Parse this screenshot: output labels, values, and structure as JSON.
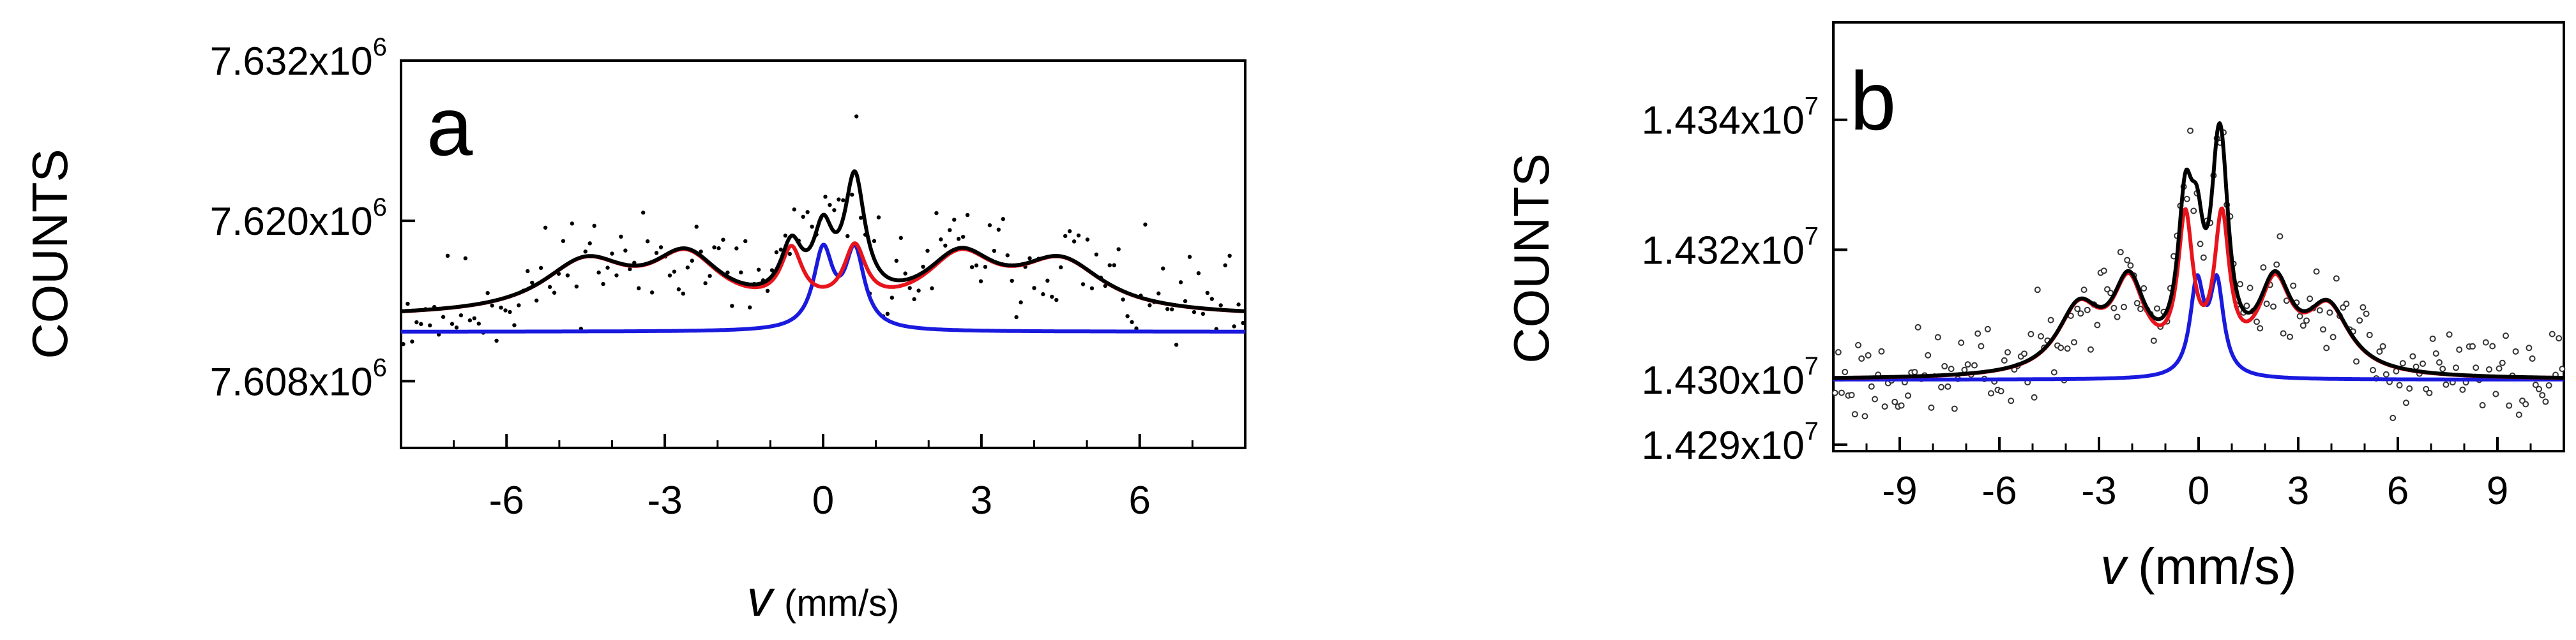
{
  "chart_data": [
    {
      "type": "scatter",
      "panel_label": "a",
      "ylabel": "COUNTS",
      "xlabel_symbol": "v",
      "xlabel_unit": "(mm/s)",
      "xlim": [
        -8,
        8
      ],
      "ylim": [
        7603000.0,
        7632000.0
      ],
      "x_ticks": [
        -6,
        -3,
        0,
        3,
        6
      ],
      "x_tick_labels": [
        "-6",
        "-3",
        "0",
        "3",
        "6"
      ],
      "y_ticks": [
        {
          "mantissa": "7.608x10",
          "exponent": "6",
          "value": 7608000.0
        },
        {
          "mantissa": "7.620x10",
          "exponent": "6",
          "value": 7620000.0
        },
        {
          "mantissa": "7.632x10",
          "exponent": "6",
          "value": 7632000.0
        }
      ],
      "colors": {
        "total": "#000000",
        "red": "#e8141c",
        "blue": "#1a1adf",
        "points": "#000000"
      },
      "series": [
        {
          "role": "total_fit",
          "color": "#000000",
          "baseline": 7612800.0,
          "components": [
            {
              "x0": -4.5,
              "w": 2.0,
              "h": 3800.0
            },
            {
              "x0": -2.6,
              "w": 1.6,
              "h": 4000.0
            },
            {
              "x0": -0.6,
              "w": 0.5,
              "h": 4000.0
            },
            {
              "x0": 0.6,
              "w": 0.5,
              "h": 4200.0
            },
            {
              "x0": 2.6,
              "w": 1.6,
              "h": 4000.0
            },
            {
              "x0": 4.5,
              "w": 2.0,
              "h": 3800.0
            },
            {
              "x0": 0.0,
              "w": 0.45,
              "h": 4800.0
            },
            {
              "x0": 0.6,
              "w": 0.45,
              "h": 4800.0
            }
          ]
        },
        {
          "role": "red_component",
          "color": "#e8141c",
          "baseline": 7612800.0,
          "components": [
            {
              "x0": -4.5,
              "w": 2.0,
              "h": 3800.0
            },
            {
              "x0": -2.6,
              "w": 1.6,
              "h": 4000.0
            },
            {
              "x0": -0.6,
              "w": 0.5,
              "h": 4000.0
            },
            {
              "x0": 0.6,
              "w": 0.5,
              "h": 4200.0
            },
            {
              "x0": 2.6,
              "w": 1.6,
              "h": 4000.0
            },
            {
              "x0": 4.5,
              "w": 2.0,
              "h": 3800.0
            }
          ]
        },
        {
          "role": "blue_component",
          "color": "#1a1adf",
          "baseline": 7611700.0,
          "components": [
            {
              "x0": 0.0,
              "w": 0.45,
              "h": 5800.0
            },
            {
              "x0": 0.6,
              "w": 0.45,
              "h": 5800.0
            }
          ]
        }
      ],
      "scatter": {
        "n": 190,
        "noise": 3000.0,
        "seed": 11,
        "point_style": "filled"
      }
    },
    {
      "type": "scatter",
      "panel_label": "b",
      "ylabel": "COUNTS",
      "xlabel_symbol": "v",
      "xlabel_unit": "(mm/s)",
      "xlim": [
        -11,
        11
      ],
      "ylim": [
        14289000.0,
        14355000.0
      ],
      "x_ticks": [
        -9,
        -6,
        -3,
        0,
        3,
        6,
        9
      ],
      "x_tick_labels": [
        "-9",
        "-6",
        "-3",
        "0",
        "3",
        "6",
        "9"
      ],
      "y_ticks": [
        {
          "mantissa": "1.429x10",
          "exponent": "7",
          "value": 14290000.0
        },
        {
          "mantissa": "1.430x10",
          "exponent": "7",
          "value": 14300000.0
        },
        {
          "mantissa": "1.432x10",
          "exponent": "7",
          "value": 14320000.0
        },
        {
          "mantissa": "1.434x10",
          "exponent": "7",
          "value": 14340000.0
        }
      ],
      "colors": {
        "total": "#000000",
        "red": "#e8141c",
        "blue": "#1a1adf",
        "points": "#555555"
      },
      "series": [
        {
          "role": "total_fit",
          "color": "#000000",
          "baseline": 14300000.0,
          "components": [
            {
              "x0": -3.6,
              "w": 1.6,
              "h": 10000.0
            },
            {
              "x0": -2.1,
              "w": 1.2,
              "h": 13000.0
            },
            {
              "x0": -0.4,
              "w": 0.55,
              "h": 22000.0
            },
            {
              "x0": 0.7,
              "w": 0.55,
              "h": 22000.0
            },
            {
              "x0": 2.3,
              "w": 1.2,
              "h": 13000.0
            },
            {
              "x0": 3.9,
              "w": 1.6,
              "h": 10000.0
            },
            {
              "x0": -0.05,
              "w": 0.5,
              "h": 14000.0
            },
            {
              "x0": 0.55,
              "w": 0.5,
              "h": 14000.0
            }
          ]
        },
        {
          "role": "red_component",
          "color": "#e8141c",
          "baseline": 14300000.0,
          "components": [
            {
              "x0": -3.6,
              "w": 1.6,
              "h": 10000.0
            },
            {
              "x0": -2.1,
              "w": 1.2,
              "h": 13000.0
            },
            {
              "x0": -0.4,
              "w": 0.55,
              "h": 22000.0
            },
            {
              "x0": 0.7,
              "w": 0.55,
              "h": 22000.0
            },
            {
              "x0": 2.3,
              "w": 1.2,
              "h": 13000.0
            },
            {
              "x0": 3.9,
              "w": 1.6,
              "h": 10000.0
            }
          ]
        },
        {
          "role": "blue_component",
          "color": "#1a1adf",
          "baseline": 14300000.0,
          "components": [
            {
              "x0": -0.05,
              "w": 0.5,
              "h": 14000.0
            },
            {
              "x0": 0.55,
              "w": 0.5,
              "h": 14000.0
            }
          ]
        }
      ],
      "scatter": {
        "n": 220,
        "noise": 5500.0,
        "seed": 23,
        "point_style": "open"
      }
    }
  ]
}
